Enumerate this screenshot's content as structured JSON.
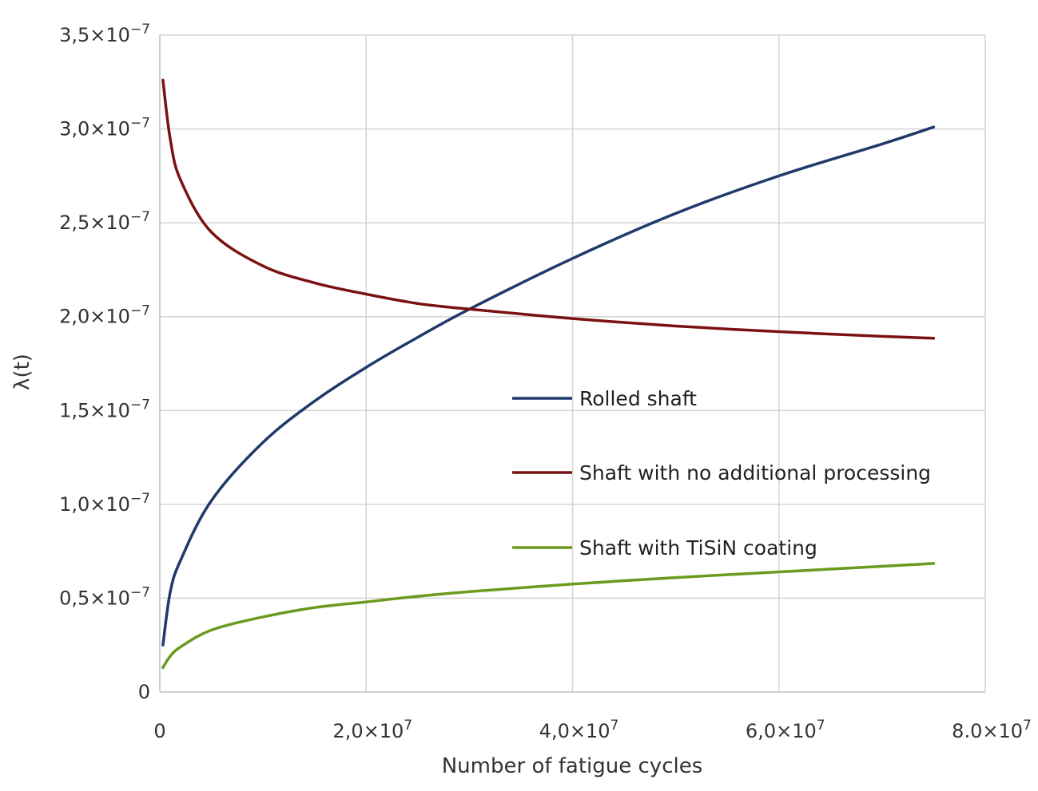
{
  "chart_data": {
    "type": "line",
    "xlabel": "Number  of fatigue cycles",
    "ylabel": "λ(t)",
    "xlim": [
      0,
      80000000
    ],
    "ylim": [
      0,
      3.5e-07
    ],
    "grid": true,
    "legend_position": "center-right",
    "x_ticks": [
      {
        "value": 0,
        "mantissa": "0",
        "exp": ""
      },
      {
        "value": 20000000,
        "mantissa": "2,0×10",
        "exp": "7"
      },
      {
        "value": 40000000,
        "mantissa": "4,0×10",
        "exp": "7"
      },
      {
        "value": 60000000,
        "mantissa": "6,0×10",
        "exp": "7"
      },
      {
        "value": 80000000,
        "mantissa": "8.0×10",
        "exp": "7"
      }
    ],
    "y_ticks": [
      {
        "value": 0,
        "mantissa": "0",
        "exp": ""
      },
      {
        "value": 5e-08,
        "mantissa": "0,5×10",
        "exp": "−7"
      },
      {
        "value": 1e-07,
        "mantissa": "1,0×10",
        "exp": "−7"
      },
      {
        "value": 1.5e-07,
        "mantissa": "1,5×10",
        "exp": "−7"
      },
      {
        "value": 2e-07,
        "mantissa": "2,0×10",
        "exp": "−7"
      },
      {
        "value": 2.5e-07,
        "mantissa": "2,5×10",
        "exp": "−7"
      },
      {
        "value": 3e-07,
        "mantissa": "3,0×10",
        "exp": "−7"
      },
      {
        "value": 3.5e-07,
        "mantissa": "3,5×10",
        "exp": "−7"
      }
    ],
    "x": [
      300000,
      1000000,
      2000000,
      5000000,
      10000000,
      15000000,
      20000000,
      25000000,
      30000000,
      40000000,
      50000000,
      60000000,
      70000000,
      75000000
    ],
    "series": [
      {
        "name": "Rolled shaft",
        "color": "#1f3a6b",
        "values": [
          2.5e-08,
          5.3e-08,
          7e-08,
          1.02e-07,
          1.33e-07,
          1.55e-07,
          1.73e-07,
          1.89e-07,
          2.04e-07,
          2.31e-07,
          2.55e-07,
          2.75e-07,
          2.92e-07,
          3.01e-07
        ]
      },
      {
        "name": "Shaft with no additional processing",
        "color": "#7a1212",
        "values": [
          3.26e-07,
          2.95e-07,
          2.73e-07,
          2.45e-07,
          2.27e-07,
          2.18e-07,
          2.12e-07,
          2.07e-07,
          2.04e-07,
          1.99e-07,
          1.95e-07,
          1.92e-07,
          1.895e-07,
          1.885e-07
        ]
      },
      {
        "name": "Shaft with TiSiN coating",
        "color": "#6a9a1e",
        "values": [
          1.3e-08,
          1.9e-08,
          2.4e-08,
          3.3e-08,
          4e-08,
          4.5e-08,
          4.8e-08,
          5.1e-08,
          5.35e-08,
          5.75e-08,
          6.1e-08,
          6.4e-08,
          6.7e-08,
          6.85e-08
        ]
      }
    ]
  }
}
